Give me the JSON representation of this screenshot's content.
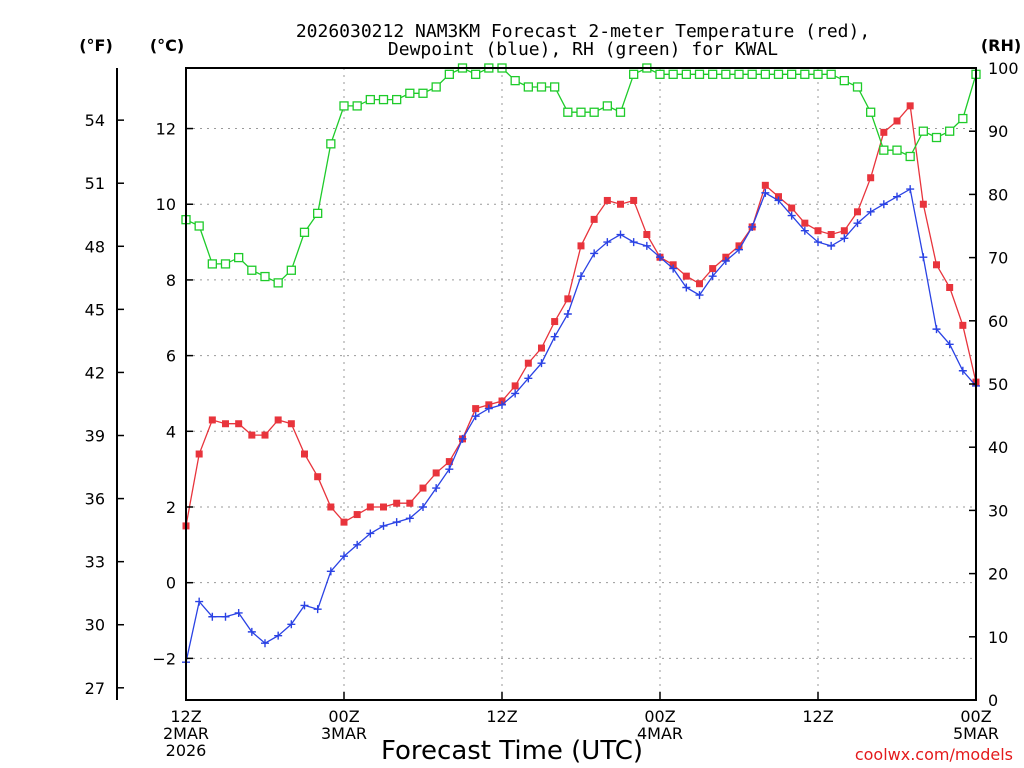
{
  "chart_data": {
    "type": "line",
    "title": "2026030212 NAM3KM Forecast 2-meter Temperature (red),\nDewpoint (blue), RH (green) for KWAL",
    "xlabel": "Forecast Time (UTC)",
    "credit": "coolwx.com/models",
    "unit_labels": {
      "fahrenheit": "(°F)",
      "celsius": "(°C)",
      "rh": "(RH)"
    },
    "x_hours": [
      0,
      1,
      2,
      3,
      4,
      5,
      6,
      7,
      8,
      9,
      10,
      11,
      12,
      13,
      14,
      15,
      16,
      17,
      18,
      19,
      20,
      21,
      22,
      23,
      24,
      25,
      26,
      27,
      28,
      29,
      30,
      31,
      32,
      33,
      34,
      35,
      36,
      37,
      38,
      39,
      40,
      41,
      42,
      43,
      44,
      45,
      46,
      47,
      48,
      49,
      50,
      51,
      52,
      53,
      54,
      55,
      56,
      57,
      58,
      59,
      60
    ],
    "xlim": [
      0,
      60
    ],
    "ylim_celsius": [
      -3.1,
      13.6
    ],
    "ylim_rh": [
      0,
      100
    ],
    "x_ticks": [
      {
        "hour": 0,
        "lines": [
          "12Z",
          "2MAR",
          "2026"
        ]
      },
      {
        "hour": 12,
        "lines": [
          "00Z",
          "3MAR"
        ]
      },
      {
        "hour": 24,
        "lines": [
          "12Z"
        ]
      },
      {
        "hour": 36,
        "lines": [
          "00Z",
          "4MAR"
        ]
      },
      {
        "hour": 48,
        "lines": [
          "12Z"
        ]
      },
      {
        "hour": 60,
        "lines": [
          "00Z",
          "5MAR"
        ]
      }
    ],
    "celsius_ticks": [
      -2,
      0,
      2,
      4,
      6,
      8,
      10,
      12
    ],
    "celsius_tick_labels": [
      "−2",
      "0",
      "2",
      "4",
      "6",
      "8",
      "10",
      "12"
    ],
    "fahrenheit_ticks": [
      27,
      30,
      33,
      36,
      39,
      42,
      45,
      48,
      51,
      54
    ],
    "rh_ticks": [
      0,
      10,
      20,
      30,
      40,
      50,
      60,
      70,
      80,
      90,
      100
    ],
    "series": [
      {
        "name": "Temperature",
        "color": "#e8343c",
        "marker": "filled-square",
        "axis": "celsius",
        "values": [
          1.5,
          3.4,
          4.3,
          4.2,
          4.2,
          3.9,
          3.9,
          4.3,
          4.2,
          3.4,
          2.8,
          2.0,
          1.6,
          1.8,
          2.0,
          2.0,
          2.1,
          2.1,
          2.5,
          2.9,
          3.2,
          3.8,
          4.6,
          4.7,
          4.8,
          5.2,
          5.8,
          6.2,
          6.9,
          7.5,
          8.9,
          9.6,
          10.1,
          10.0,
          10.1,
          9.2,
          8.6,
          8.4,
          8.1,
          7.9,
          8.3,
          8.6,
          8.9,
          9.4,
          10.5,
          10.2,
          9.9,
          9.5,
          9.3,
          9.2,
          9.3,
          9.8,
          10.7,
          11.9,
          12.2,
          12.6,
          10.0,
          8.4,
          7.8,
          6.8,
          5.3
        ]
      },
      {
        "name": "Dewpoint",
        "color": "#2a42e4",
        "marker": "plus",
        "axis": "celsius",
        "values": [
          -2.1,
          -0.5,
          -0.9,
          -0.9,
          -0.8,
          -1.3,
          -1.6,
          -1.4,
          -1.1,
          -0.6,
          -0.7,
          0.3,
          0.7,
          1.0,
          1.3,
          1.5,
          1.6,
          1.7,
          2.0,
          2.5,
          3.0,
          3.8,
          4.4,
          4.6,
          4.7,
          5.0,
          5.4,
          5.8,
          6.5,
          7.1,
          8.1,
          8.7,
          9.0,
          9.2,
          9.0,
          8.9,
          8.6,
          8.3,
          7.8,
          7.6,
          8.1,
          8.5,
          8.8,
          9.4,
          10.3,
          10.1,
          9.7,
          9.3,
          9.0,
          8.9,
          9.1,
          9.5,
          9.8,
          10.0,
          10.2,
          10.4,
          8.6,
          6.7,
          6.3,
          5.6,
          5.2
        ]
      },
      {
        "name": "RH",
        "color": "#1ecb2a",
        "marker": "open-square",
        "axis": "rh",
        "values": [
          76,
          75,
          69,
          69,
          70,
          68,
          67,
          66,
          68,
          74,
          77,
          88,
          94,
          94,
          95,
          95,
          95,
          96,
          96,
          97,
          99,
          100,
          99,
          100,
          100,
          98,
          97,
          97,
          97,
          93,
          93,
          93,
          94,
          93,
          99,
          100,
          99,
          99,
          99,
          99,
          99,
          99,
          99,
          99,
          99,
          99,
          99,
          99,
          99,
          99,
          98,
          97,
          93,
          87,
          87,
          86,
          90,
          89,
          90,
          92,
          99
        ]
      }
    ]
  }
}
